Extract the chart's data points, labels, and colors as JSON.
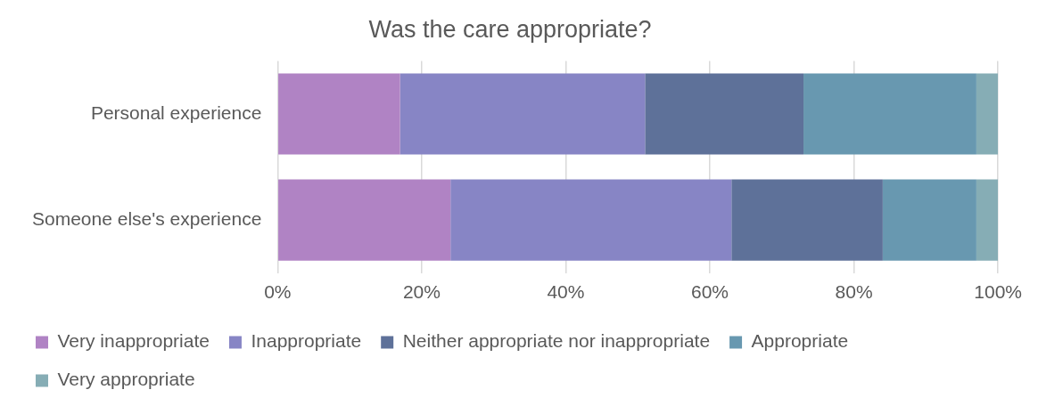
{
  "chart_data": {
    "type": "bar",
    "title": "Was the care appropriate?",
    "orientation": "horizontal",
    "stacked": true,
    "categories": [
      "Personal experience",
      "Someone else's experience"
    ],
    "series": [
      {
        "name": "Very inappropriate",
        "color": "#b083c4",
        "values": [
          17,
          24
        ]
      },
      {
        "name": "Inappropriate",
        "color": "#8785c5",
        "values": [
          34,
          39
        ]
      },
      {
        "name": "Neither appropriate nor inappropriate",
        "color": "#5e7199",
        "values": [
          22,
          21
        ]
      },
      {
        "name": "Appropriate",
        "color": "#6898b0",
        "values": [
          24,
          13
        ]
      },
      {
        "name": "Very appropriate",
        "color": "#86adb5",
        "values": [
          3,
          3
        ]
      }
    ],
    "xlim": [
      0,
      100
    ],
    "xticks": [
      {
        "value": 0,
        "label": "0%"
      },
      {
        "value": 20,
        "label": "20%"
      },
      {
        "value": 40,
        "label": "40%"
      },
      {
        "value": 60,
        "label": "60%"
      },
      {
        "value": 80,
        "label": "80%"
      },
      {
        "value": 100,
        "label": "100%"
      }
    ],
    "grid": "x",
    "legend": "bottom"
  }
}
